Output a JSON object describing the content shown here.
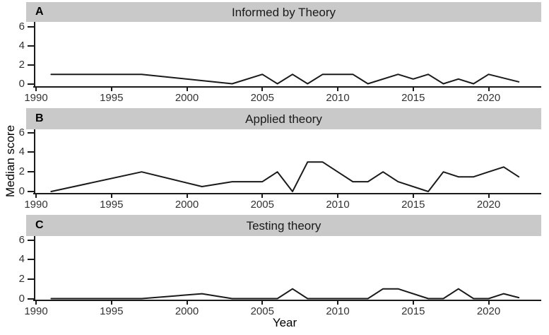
{
  "figure": {
    "xlabel": "Year",
    "ylabel": "Median score"
  },
  "colors": {
    "strip_background": "#c9c9c9",
    "line": "#1a1a1a",
    "axis": "#1a1a1a",
    "tick_text": "#333333",
    "title_text": "#1a1a1a"
  },
  "chart_data": [
    {
      "type": "line",
      "panel_tag": "A",
      "title": "Informed by Theory",
      "xlabel": "Year",
      "ylabel": "Median score",
      "xlim": [
        1989.8,
        2023.5
      ],
      "ylim": [
        0,
        6
      ],
      "x_ticks": [
        1990,
        1995,
        2000,
        2005,
        2010,
        2015,
        2020
      ],
      "y_ticks": [
        0,
        2,
        4,
        6
      ],
      "grid": false,
      "legend": false,
      "series": [
        {
          "name": "Median score",
          "x": [
            1991,
            1997,
            2003,
            2005,
            2006,
            2007,
            2008,
            2009,
            2011,
            2012,
            2014,
            2015,
            2016,
            2017,
            2018,
            2019,
            2020,
            2022
          ],
          "y": [
            1,
            1,
            0,
            1,
            0,
            1,
            0,
            1,
            1,
            0,
            1,
            0.5,
            1,
            0,
            0.5,
            0,
            1,
            0.2
          ]
        }
      ]
    },
    {
      "type": "line",
      "panel_tag": "B",
      "title": "Applied theory",
      "xlabel": "Year",
      "ylabel": "Median score",
      "xlim": [
        1989.8,
        2023.5
      ],
      "ylim": [
        0,
        6
      ],
      "x_ticks": [
        1990,
        1995,
        2000,
        2005,
        2010,
        2015,
        2020
      ],
      "y_ticks": [
        0,
        2,
        4,
        6
      ],
      "grid": false,
      "legend": false,
      "series": [
        {
          "name": "Median score",
          "x": [
            1991,
            1997,
            2001,
            2003,
            2005,
            2006,
            2007,
            2008,
            2009,
            2010,
            2011,
            2012,
            2013,
            2014,
            2016,
            2017,
            2018,
            2019,
            2020,
            2021,
            2022
          ],
          "y": [
            0,
            2,
            0.5,
            1,
            1,
            2,
            0,
            3,
            3,
            2,
            1,
            1,
            2,
            1,
            0,
            2,
            1.5,
            1.5,
            2,
            2.5,
            1.5
          ]
        }
      ]
    },
    {
      "type": "line",
      "panel_tag": "C",
      "title": "Testing theory",
      "xlabel": "Year",
      "ylabel": "Median score",
      "xlim": [
        1989.8,
        2023.5
      ],
      "ylim": [
        0,
        6
      ],
      "x_ticks": [
        1990,
        1995,
        2000,
        2005,
        2010,
        2015,
        2020
      ],
      "y_ticks": [
        0,
        2,
        4,
        6
      ],
      "grid": false,
      "legend": false,
      "series": [
        {
          "name": "Median score",
          "x": [
            1991,
            1997,
            2001,
            2003,
            2006,
            2007,
            2008,
            2012,
            2013,
            2014,
            2016,
            2017,
            2018,
            2019,
            2020,
            2021,
            2022
          ],
          "y": [
            0,
            0,
            0.5,
            0,
            0,
            1,
            0,
            0,
            1,
            1,
            0,
            0,
            1,
            0,
            0,
            0.5,
            0.1
          ]
        }
      ]
    }
  ]
}
